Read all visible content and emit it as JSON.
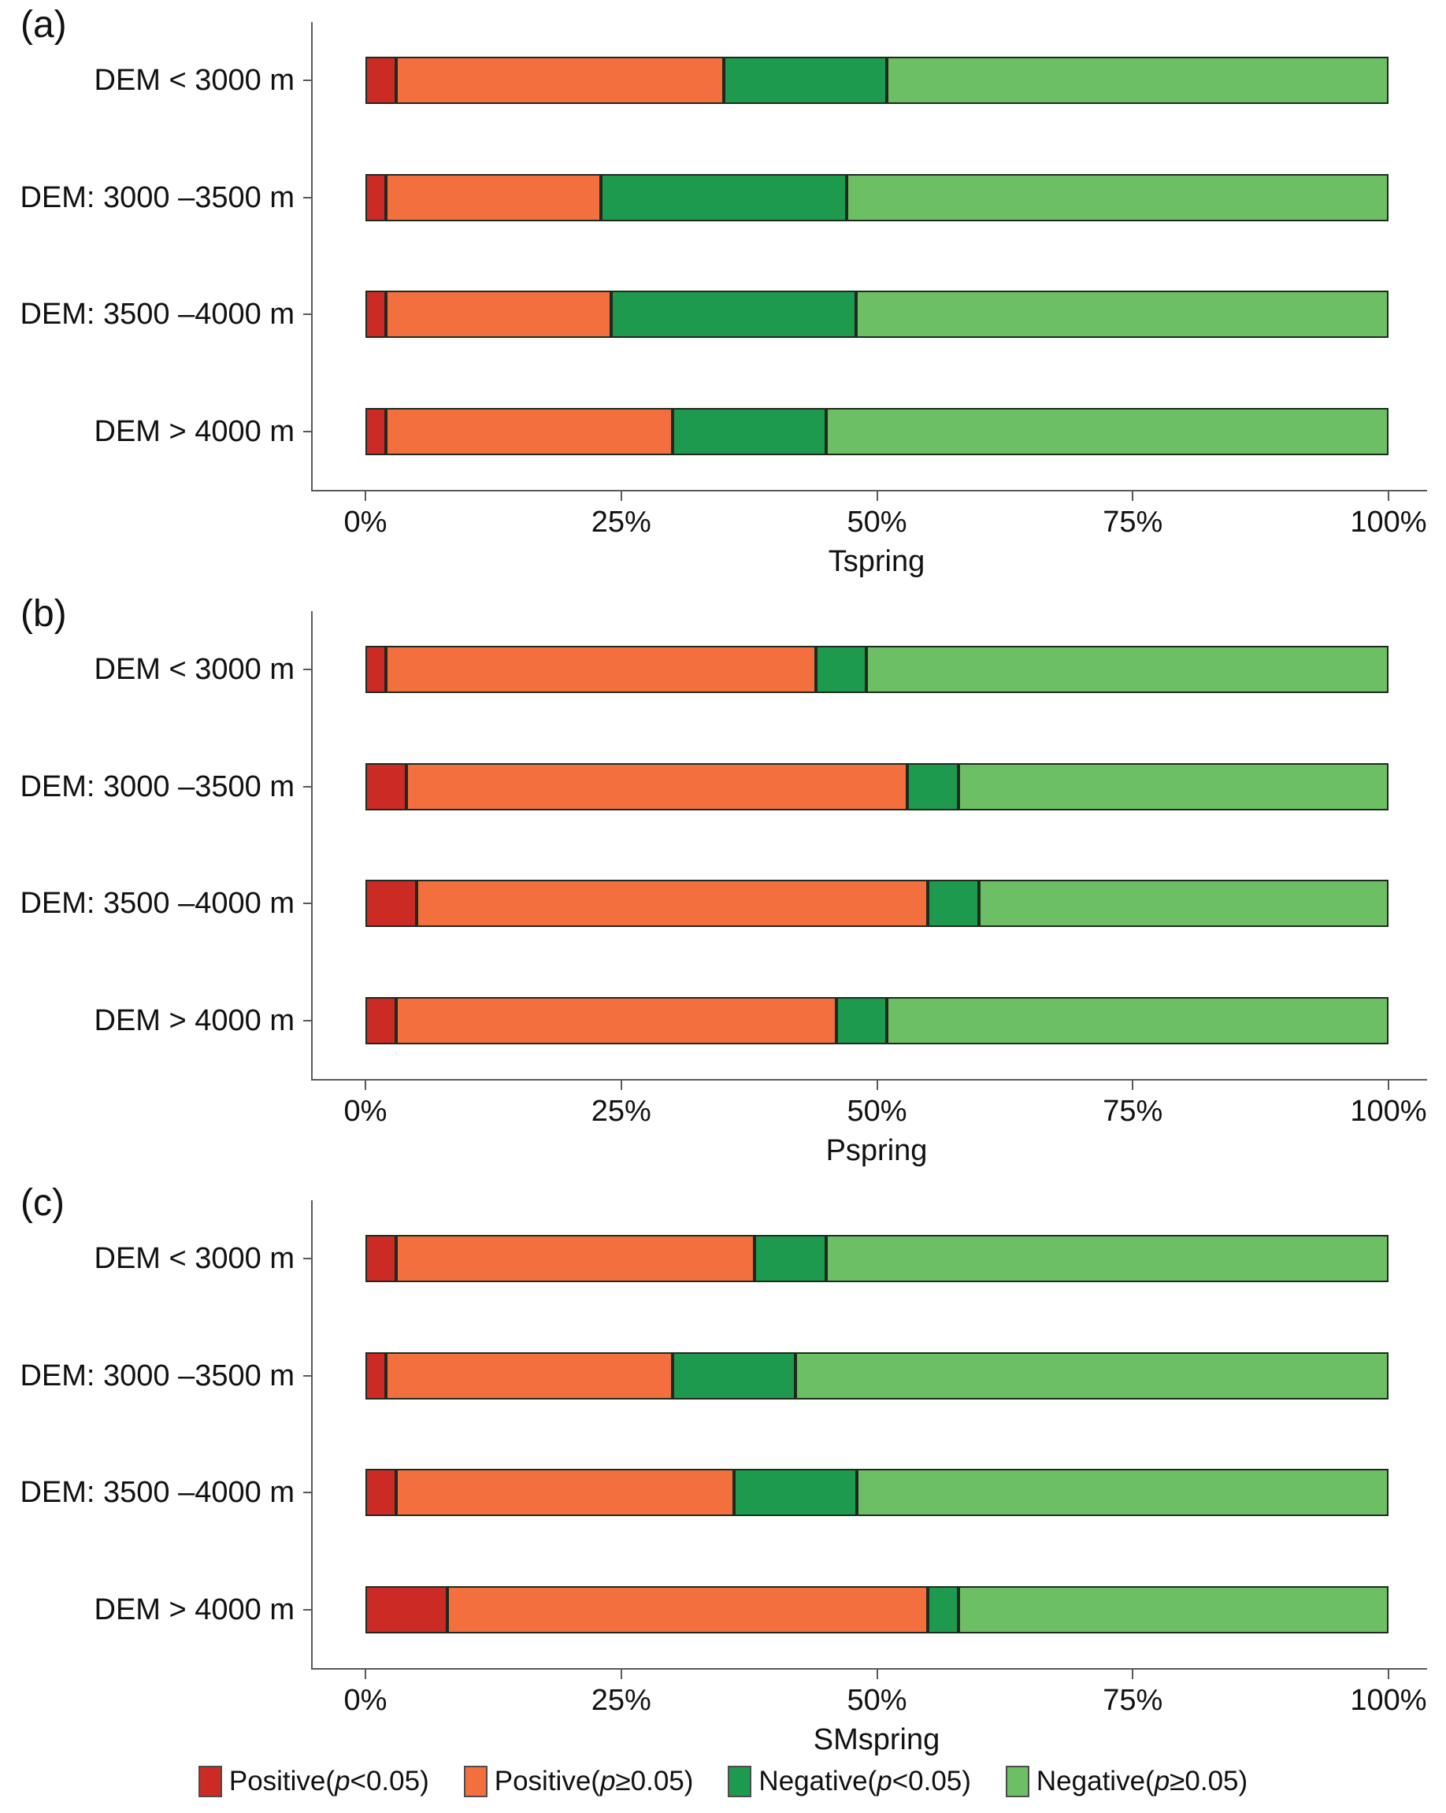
{
  "figure_title": "",
  "palette": {
    "sig_positive_red": "#cc2a25",
    "positive_orange": "#f3703e",
    "sig_negative_dark_green": "#1d9a4e",
    "negative_light_green": "#6dbf63",
    "axis_gray": "#595959",
    "text_black": "#111111"
  },
  "chart_data": [
    {
      "type": "bar",
      "orientation": "horizontal",
      "stacked": true,
      "panel_label": "(a)",
      "xlabel": "Tspring",
      "ylabel": "",
      "xlim": [
        0,
        100
      ],
      "x_ticks": [
        "0%",
        "25%",
        "50%",
        "75%",
        "100%"
      ],
      "grid": false,
      "legend_position": "bottom-shared",
      "categories": [
        "DEM < 3000 m",
        "DEM: 3000 –3500 m",
        "DEM: 3500 –4000 m",
        "DEM > 4000 m"
      ],
      "series": [
        {
          "name": "Positive(p<0.05)",
          "values": [
            3,
            2,
            2,
            2
          ]
        },
        {
          "name": "Positive(p≥0.05)",
          "values": [
            32,
            21,
            22,
            28
          ]
        },
        {
          "name": "Negative(p<0.05)",
          "values": [
            16,
            24,
            24,
            15
          ]
        },
        {
          "name": "Negative(p≥0.05)",
          "values": [
            49,
            53,
            52,
            55
          ]
        }
      ]
    },
    {
      "type": "bar",
      "orientation": "horizontal",
      "stacked": true,
      "panel_label": "(b)",
      "xlabel": "Pspring",
      "ylabel": "",
      "xlim": [
        0,
        100
      ],
      "x_ticks": [
        "0%",
        "25%",
        "50%",
        "75%",
        "100%"
      ],
      "grid": false,
      "legend_position": "bottom-shared",
      "categories": [
        "DEM < 3000 m",
        "DEM: 3000 –3500 m",
        "DEM: 3500 –4000 m",
        "DEM > 4000 m"
      ],
      "series": [
        {
          "name": "Positive(p<0.05)",
          "values": [
            2,
            4,
            5,
            3
          ]
        },
        {
          "name": "Positive(p≥0.05)",
          "values": [
            42,
            49,
            50,
            43
          ]
        },
        {
          "name": "Negative(p<0.05)",
          "values": [
            5,
            5,
            5,
            5
          ]
        },
        {
          "name": "Negative(p≥0.05)",
          "values": [
            51,
            42,
            40,
            49
          ]
        }
      ]
    },
    {
      "type": "bar",
      "orientation": "horizontal",
      "stacked": true,
      "panel_label": "(c)",
      "xlabel": "SMspring",
      "ylabel": "",
      "xlim": [
        0,
        100
      ],
      "x_ticks": [
        "0%",
        "25%",
        "50%",
        "75%",
        "100%"
      ],
      "grid": false,
      "legend_position": "bottom-shared",
      "categories": [
        "DEM < 3000 m",
        "DEM: 3000 –3500 m",
        "DEM: 3500 –4000 m",
        "DEM > 4000 m"
      ],
      "series": [
        {
          "name": "Positive(p<0.05)",
          "values": [
            3,
            2,
            3,
            8
          ]
        },
        {
          "name": "Positive(p≥0.05)",
          "values": [
            35,
            28,
            33,
            47
          ]
        },
        {
          "name": "Negative(p<0.05)",
          "values": [
            7,
            12,
            12,
            3
          ]
        },
        {
          "name": "Negative(p≥0.05)",
          "values": [
            55,
            58,
            52,
            42
          ]
        }
      ]
    }
  ],
  "legend": {
    "items": [
      {
        "pre": "Positive(",
        "p_char": "p",
        "post": "<0.05)",
        "color": "#cc2a25"
      },
      {
        "pre": "Positive(",
        "p_char": "p",
        "post": "≥0.05)",
        "color": "#f3703e"
      },
      {
        "pre": "Negative(",
        "p_char": "p",
        "post": "<0.05)",
        "color": "#1d9a4e"
      },
      {
        "pre": "Negative(",
        "p_char": "p",
        "post": "≥0.05)",
        "color": "#6dbf63"
      }
    ]
  }
}
